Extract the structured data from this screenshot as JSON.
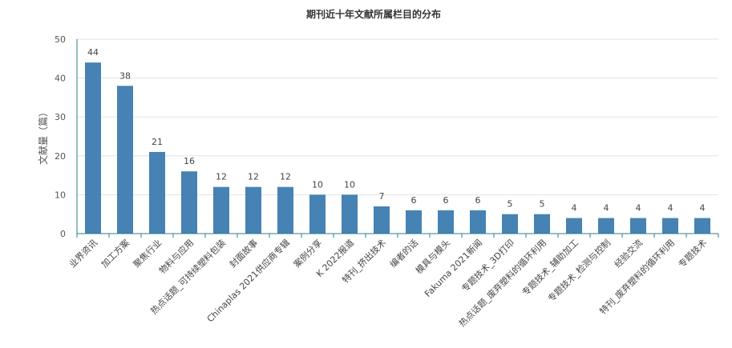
{
  "chart_data": {
    "type": "bar",
    "title": "期刊近十年文献所属栏目的分布",
    "xlabel": "",
    "ylabel": "文献量（篇）",
    "ylim": [
      0,
      50
    ],
    "yticks": [
      0,
      10,
      20,
      30,
      40,
      50
    ],
    "grid": true,
    "bar_color": "#4682b4",
    "categories": [
      "业界资讯",
      "加工方案",
      "聚焦行业",
      "物料与应用",
      "热点话题_可持续塑料包装",
      "封面故事",
      "Chinaplas 2021供应商专辑",
      "案例分享",
      "K 2022报道",
      "特刊_挤出技术",
      "编者的话",
      "模具与模头",
      "Fakuma 2021新闻",
      "专题技术_3D打印",
      "热点话题_废弃塑料的循环利用",
      "专题技术_辅助加工",
      "专题技术_检测与控制",
      "经验交流",
      "特刊_废弃塑料的循环利用",
      "专题技术"
    ],
    "values": [
      44,
      38,
      21,
      16,
      12,
      12,
      12,
      10,
      10,
      7,
      6,
      6,
      6,
      5,
      5,
      4,
      4,
      4,
      4,
      4
    ]
  }
}
